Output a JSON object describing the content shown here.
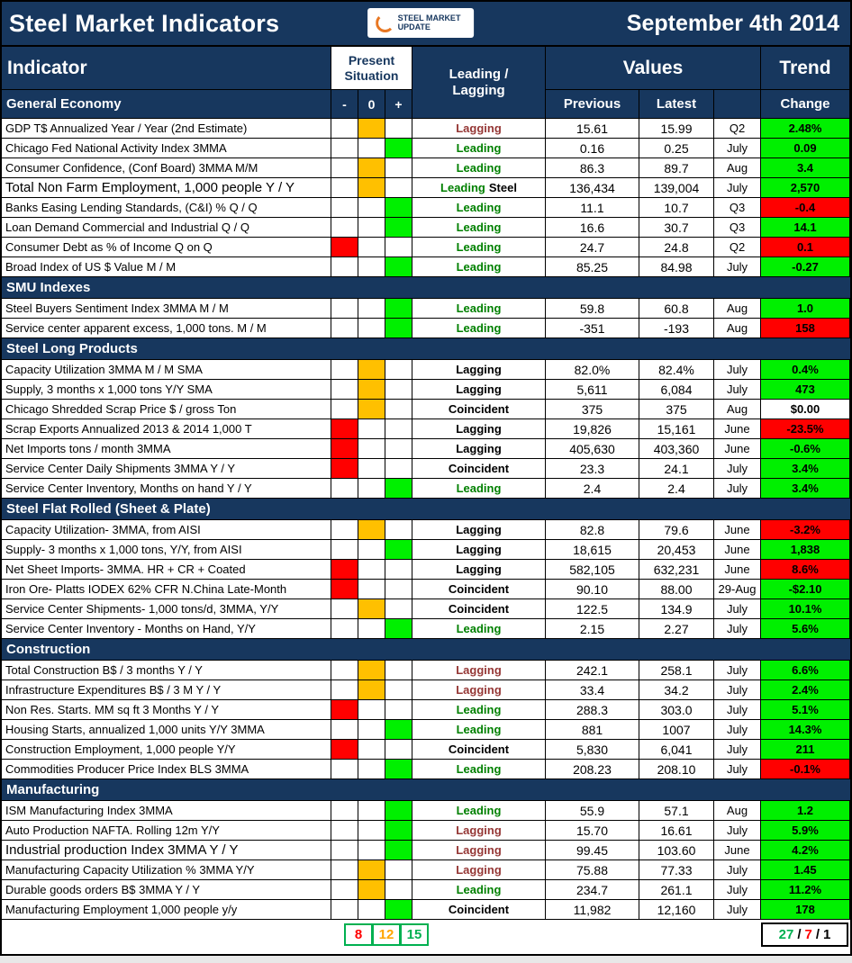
{
  "header": {
    "title": "Steel Market Indicators",
    "date": "September 4th 2014",
    "logo_text": "STEEL MARKET UPDATE"
  },
  "chart_data": {
    "type": "table",
    "title": "Steel Market Indicators - September 4th 2014",
    "columns": {
      "indicator": "Indicator",
      "present_situation": "Present Situation",
      "present_minus": "-",
      "present_zero": "0",
      "present_plus": "+",
      "leading_lagging": "Leading / Lagging",
      "values": "Values",
      "previous": "Previous",
      "latest": "Latest",
      "trend": "Trend",
      "change": "Change"
    },
    "sections": [
      {
        "name": "General Economy",
        "rows": [
          {
            "indicator": "GDP T$ Annualized Year / Year (2nd Estimate)",
            "situation": "zero",
            "signal": "Lagging",
            "signal_style": "lagging-red",
            "previous": "15.61",
            "latest": "15.99",
            "period": "Q2",
            "change": "2.48%",
            "change_style": "green"
          },
          {
            "indicator": "Chicago Fed National Activity Index 3MMA",
            "situation": "plus",
            "signal": "Leading",
            "signal_style": "leading",
            "previous": "0.16",
            "latest": "0.25",
            "period": "July",
            "change": "0.09",
            "change_style": "green"
          },
          {
            "indicator": "Consumer Confidence, (Conf Board) 3MMA M/M",
            "situation": "zero",
            "signal": "Leading",
            "signal_style": "leading",
            "previous": "86.3",
            "latest": "89.7",
            "period": "Aug",
            "change": "3.4",
            "change_style": "green"
          },
          {
            "indicator": "Total Non Farm Employment, 1,000 people Y / Y",
            "situation": "zero",
            "signal": "Leading",
            "signal_suffix": "Steel",
            "signal_style": "leading",
            "previous": "136,434",
            "latest": "139,004",
            "period": "July",
            "change": "2,570",
            "change_style": "green",
            "large": true
          },
          {
            "indicator": "Banks Easing Lending Standards, (C&I) % Q / Q",
            "situation": "plus",
            "signal": "Leading",
            "signal_style": "leading",
            "previous": "11.1",
            "latest": "10.7",
            "period": "Q3",
            "change": "-0.4",
            "change_style": "red"
          },
          {
            "indicator": "Loan Demand Commercial and Industrial Q / Q",
            "situation": "plus",
            "signal": "Leading",
            "signal_style": "leading",
            "previous": "16.6",
            "latest": "30.7",
            "period": "Q3",
            "change": "14.1",
            "change_style": "green"
          },
          {
            "indicator": "Consumer Debt as % of Income Q on Q",
            "situation": "minus",
            "signal": "Leading",
            "signal_style": "leading",
            "previous": "24.7",
            "latest": "24.8",
            "period": "Q2",
            "change": "0.1",
            "change_style": "red"
          },
          {
            "indicator": "Broad Index of US $ Value M / M",
            "situation": "plus",
            "signal": "Leading",
            "signal_style": "leading",
            "previous": "85.25",
            "latest": "84.98",
            "period": "July",
            "change": "-0.27",
            "change_style": "green"
          }
        ]
      },
      {
        "name": "SMU Indexes",
        "rows": [
          {
            "indicator": "Steel Buyers Sentiment Index 3MMA M / M",
            "situation": "plus",
            "signal": "Leading",
            "signal_style": "leading",
            "previous": "59.8",
            "latest": "60.8",
            "period": "Aug",
            "change": "1.0",
            "change_style": "green"
          },
          {
            "indicator": "Service center apparent excess, 1,000 tons. M / M",
            "situation": "plus",
            "signal": "Leading",
            "signal_style": "leading",
            "previous": "-351",
            "latest": "-193",
            "period": "Aug",
            "change": "158",
            "change_style": "red"
          }
        ]
      },
      {
        "name": "Steel Long Products",
        "rows": [
          {
            "indicator": "Capacity Utilization 3MMA  M / M SMA",
            "situation": "zero",
            "signal": "Lagging",
            "signal_style": "lagging-black",
            "previous": "82.0%",
            "latest": "82.4%",
            "period": "July",
            "change": "0.4%",
            "change_style": "green"
          },
          {
            "indicator": "Supply, 3 months x 1,000 tons Y/Y SMA",
            "situation": "zero",
            "signal": "Lagging",
            "signal_style": "lagging-black",
            "previous": "5,611",
            "latest": "6,084",
            "period": "July",
            "change": "473",
            "change_style": "green"
          },
          {
            "indicator": "Chicago Shredded Scrap Price $ / gross Ton",
            "situation": "zero",
            "signal": "Coincident",
            "signal_style": "coincident",
            "previous": "375",
            "latest": "375",
            "period": "Aug",
            "change": "$0.00",
            "change_style": "neutral"
          },
          {
            "indicator": "Scrap Exports Annualized 2013 & 2014 1,000 T",
            "situation": "minus",
            "signal": "Lagging",
            "signal_style": "lagging-black",
            "previous": "19,826",
            "latest": "15,161",
            "period": "June",
            "change": "-23.5%",
            "change_style": "red"
          },
          {
            "indicator": "Net Imports tons / month 3MMA",
            "situation": "minus",
            "signal": "Lagging",
            "signal_style": "lagging-black",
            "previous": "405,630",
            "latest": "403,360",
            "period": "June",
            "change": "-0.6%",
            "change_style": "green"
          },
          {
            "indicator": "Service Center Daily Shipments 3MMA Y / Y",
            "situation": "minus",
            "signal": "Coincident",
            "signal_style": "coincident",
            "previous": "23.3",
            "latest": "24.1",
            "period": "July",
            "change": "3.4%",
            "change_style": "green"
          },
          {
            "indicator": "Service Center Inventory, Months on hand Y / Y",
            "situation": "plus",
            "signal": "Leading",
            "signal_style": "leading",
            "previous": "2.4",
            "latest": "2.4",
            "period": "July",
            "change": "3.4%",
            "change_style": "green"
          }
        ]
      },
      {
        "name": "Steel Flat Rolled (Sheet & Plate)",
        "rows": [
          {
            "indicator": "Capacity Utilization- 3MMA, from AISI",
            "situation": "zero",
            "signal": "Lagging",
            "signal_style": "lagging-black",
            "previous": "82.8",
            "latest": "79.6",
            "period": "June",
            "change": "-3.2%",
            "change_style": "red"
          },
          {
            "indicator": "Supply- 3 months x 1,000 tons, Y/Y, from AISI",
            "situation": "plus",
            "signal": "Lagging",
            "signal_style": "lagging-black",
            "previous": "18,615",
            "latest": "20,453",
            "period": "June",
            "change": "1,838",
            "change_style": "green"
          },
          {
            "indicator": "Net Sheet Imports- 3MMA. HR + CR + Coated",
            "situation": "minus",
            "signal": "Lagging",
            "signal_style": "lagging-black",
            "previous": "582,105",
            "latest": "632,231",
            "period": "June",
            "change": "8.6%",
            "change_style": "red"
          },
          {
            "indicator": "Iron Ore- Platts IODEX 62% CFR N.China Late-Month",
            "situation": "minus",
            "signal": "Coincident",
            "signal_style": "coincident",
            "previous": "90.10",
            "latest": "88.00",
            "period": "29-Aug",
            "change": "-$2.10",
            "change_style": "green"
          },
          {
            "indicator": "Service Center Shipments- 1,000 tons/d, 3MMA, Y/Y",
            "situation": "zero",
            "signal": "Coincident",
            "signal_style": "coincident",
            "previous": "122.5",
            "latest": "134.9",
            "period": "July",
            "change": "10.1%",
            "change_style": "green"
          },
          {
            "indicator": "Service Center Inventory - Months on Hand, Y/Y",
            "situation": "plus",
            "signal": "Leading",
            "signal_style": "leading",
            "previous": "2.15",
            "latest": "2.27",
            "period": "July",
            "change": "5.6%",
            "change_style": "green"
          }
        ]
      },
      {
        "name": "Construction",
        "rows": [
          {
            "indicator": "Total Construction B$ /  3 months Y / Y",
            "situation": "zero",
            "signal": "Lagging",
            "signal_style": "lagging-red",
            "previous": "242.1",
            "latest": "258.1",
            "period": "July",
            "change": "6.6%",
            "change_style": "green"
          },
          {
            "indicator": "Infrastructure Expenditures B$ / 3 M    Y / Y",
            "situation": "zero",
            "signal": "Lagging",
            "signal_style": "lagging-red",
            "previous": "33.4",
            "latest": "34.2",
            "period": "July",
            "change": "2.4%",
            "change_style": "green"
          },
          {
            "indicator": "Non Res. Starts. MM sq ft 3 Months   Y / Y",
            "situation": "minus",
            "signal": "Leading",
            "signal_style": "leading",
            "previous": "288.3",
            "latest": "303.0",
            "period": "July",
            "change": "5.1%",
            "change_style": "green"
          },
          {
            "indicator": "Housing Starts, annualized 1,000 units Y/Y 3MMA",
            "situation": "plus",
            "signal": "Leading",
            "signal_style": "leading",
            "previous": "881",
            "latest": "1007",
            "period": "July",
            "change": "14.3%",
            "change_style": "green"
          },
          {
            "indicator": "Construction Employment, 1,000 people Y/Y",
            "situation": "minus",
            "signal": "Coincident",
            "signal_style": "coincident",
            "previous": "5,830",
            "latest": "6,041",
            "period": "July",
            "change": "211",
            "change_style": "green"
          },
          {
            "indicator": "Commodities Producer Price Index BLS 3MMA",
            "situation": "plus",
            "signal": "Leading",
            "signal_style": "leading",
            "previous": "208.23",
            "latest": "208.10",
            "period": "July",
            "change": "-0.1%",
            "change_style": "red"
          }
        ]
      },
      {
        "name": "Manufacturing",
        "rows": [
          {
            "indicator": "ISM Manufacturing Index 3MMA",
            "situation": "plus",
            "signal": "Leading",
            "signal_style": "leading",
            "previous": "55.9",
            "latest": "57.1",
            "period": "Aug",
            "change": "1.2",
            "change_style": "green"
          },
          {
            "indicator": "Auto Production NAFTA. Rolling 12m Y/Y",
            "situation": "plus",
            "signal": "Lagging",
            "signal_style": "lagging-red",
            "previous": "15.70",
            "latest": "16.61",
            "period": "July",
            "change": "5.9%",
            "change_style": "green"
          },
          {
            "indicator": "Industrial production Index 3MMA Y / Y",
            "situation": "plus",
            "signal": "Lagging",
            "signal_style": "lagging-red",
            "previous": "99.45",
            "latest": "103.60",
            "period": "June",
            "change": "4.2%",
            "change_style": "green",
            "large": true
          },
          {
            "indicator": "Manufacturing Capacity Utilization % 3MMA Y/Y",
            "situation": "zero",
            "signal": "Lagging",
            "signal_style": "lagging-red",
            "previous": "75.88",
            "latest": "77.33",
            "period": "July",
            "change": "1.45",
            "change_style": "green"
          },
          {
            "indicator": "Durable goods orders B$  3MMA Y / Y",
            "situation": "zero",
            "signal": "Leading",
            "signal_style": "leading",
            "previous": "234.7",
            "latest": "261.1",
            "period": "July",
            "change": "11.2%",
            "change_style": "green"
          },
          {
            "indicator": "Manufacturing Employment 1,000 people y/y",
            "situation": "plus",
            "signal": "Coincident",
            "signal_style": "coincident",
            "previous": "11,982",
            "latest": "12,160",
            "period": "July",
            "change": "178",
            "change_style": "green"
          }
        ]
      }
    ],
    "footer": {
      "situation_tally": [
        {
          "value": "8",
          "color": "red"
        },
        {
          "value": "12",
          "color": "amber"
        },
        {
          "value": "15",
          "color": "green"
        }
      ],
      "trend_tally": [
        {
          "value": "27",
          "color": "green"
        },
        {
          "value": "7",
          "color": "red"
        },
        {
          "value": "1",
          "color": "black"
        }
      ],
      "trend_separator": "/"
    }
  }
}
